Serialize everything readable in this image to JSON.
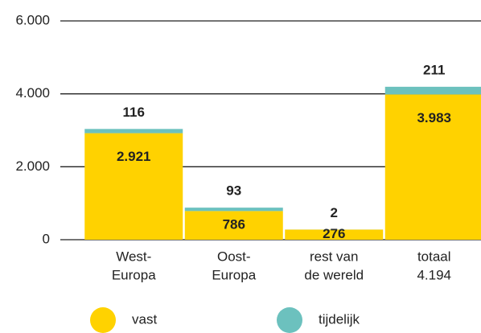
{
  "chart_data": {
    "type": "stacked_bar",
    "categories": [
      [
        "West-",
        "Europa"
      ],
      [
        "Oost-",
        "Europa"
      ],
      [
        "rest van",
        "de wereld"
      ],
      [
        "totaal",
        "4.194"
      ]
    ],
    "series": [
      {
        "name": "vast",
        "color": "#ffd200",
        "values": [
          2921,
          786,
          276,
          3983
        ],
        "value_labels": [
          "2.921",
          "786",
          "276",
          "3.983"
        ]
      },
      {
        "name": "tijdelijk",
        "color": "#6cc1be",
        "values": [
          116,
          93,
          2,
          211
        ]
      }
    ],
    "ylim": [
      0,
      6000
    ],
    "yticks": [
      0,
      {
        "value": 2000,
        "label": "2.000"
      },
      {
        "value": 4000,
        "label": "4.000"
      },
      {
        "value": 6000,
        "label": "6.000"
      }
    ],
    "grid": true
  }
}
